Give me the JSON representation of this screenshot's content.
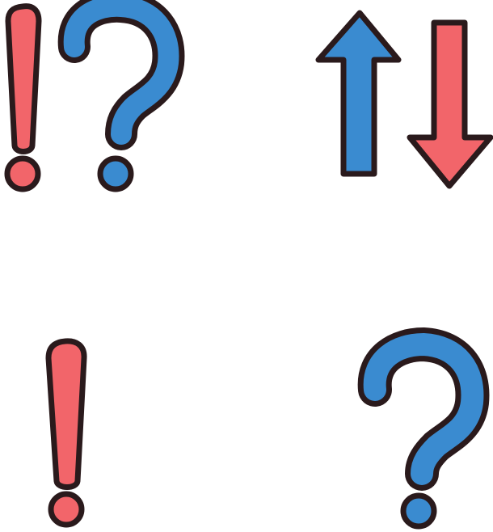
{
  "icons": [
    {
      "name": "interrobang-icon",
      "parts": [
        "exclamation",
        "question"
      ]
    },
    {
      "name": "up-down-arrows-icon",
      "parts": [
        "up-arrow",
        "down-arrow"
      ]
    },
    {
      "name": "exclamation-icon"
    },
    {
      "name": "question-icon"
    }
  ],
  "colors": {
    "red": "#f2656a",
    "blue": "#3a8bd0",
    "outline": "#2a1a1c",
    "background": "#ffffff"
  }
}
